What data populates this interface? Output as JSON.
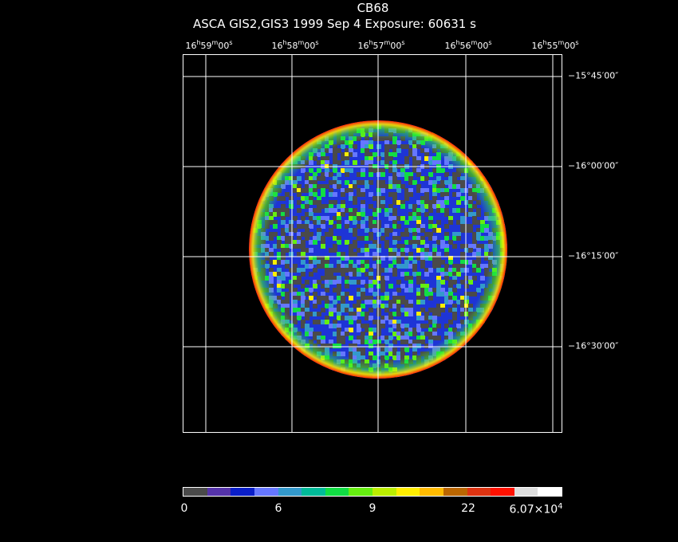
{
  "title": {
    "object": "CB68",
    "info": "ASCA GIS2,GIS3    1999 Sep  4    Exposure: 60631 s"
  },
  "ra_labels": [
    {
      "h": "16",
      "m": "59",
      "s": "00"
    },
    {
      "h": "16",
      "m": "58",
      "s": "00"
    },
    {
      "h": "16",
      "m": "57",
      "s": "00"
    },
    {
      "h": "16",
      "m": "56",
      "s": "00"
    },
    {
      "h": "16",
      "m": "55",
      "s": "00"
    }
  ],
  "dec_labels": [
    "−15°45′00″",
    "−16°00′00″",
    "−16°15′00″",
    "−16°30′00″"
  ],
  "colorbar": {
    "colors": [
      "#4a4a4a",
      "#5533aa",
      "#0a1ec8",
      "#6677ff",
      "#3399cc",
      "#00bb99",
      "#11dd44",
      "#66ee11",
      "#bbee00",
      "#ffee00",
      "#ffbb00",
      "#bb6600",
      "#dd3311",
      "#ff1100",
      "#dddddd",
      "#ffffff"
    ],
    "labels": [
      "0",
      "6",
      "9",
      "22",
      "6.07×10",
      "4"
    ]
  }
}
